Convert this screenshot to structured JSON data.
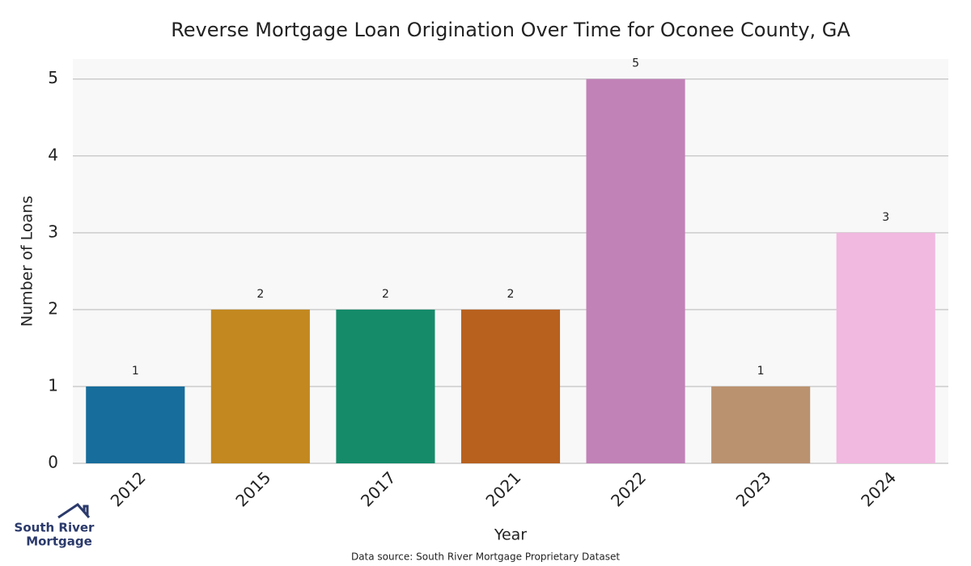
{
  "chart_data": {
    "type": "bar",
    "title": "Reverse Mortgage Loan Origination Over Time for Oconee County, GA",
    "xlabel": "Year",
    "ylabel": "Number of Loans",
    "categories": [
      "2012",
      "2015",
      "2017",
      "2021",
      "2022",
      "2023",
      "2024"
    ],
    "values": [
      1,
      2,
      2,
      2,
      5,
      1,
      3
    ],
    "colors": [
      "#176d9c",
      "#c38820",
      "#158b6a",
      "#b8611f",
      "#c182b7",
      "#bb9270",
      "#f1b8e0"
    ],
    "ylim": [
      0,
      5.26
    ],
    "yticks": [
      0,
      1,
      2,
      3,
      4,
      5
    ],
    "grid": true,
    "source": "Data source: South River Mortgage Proprietary Dataset"
  },
  "logo": {
    "line1": "South River",
    "line2": "Mortgage"
  }
}
